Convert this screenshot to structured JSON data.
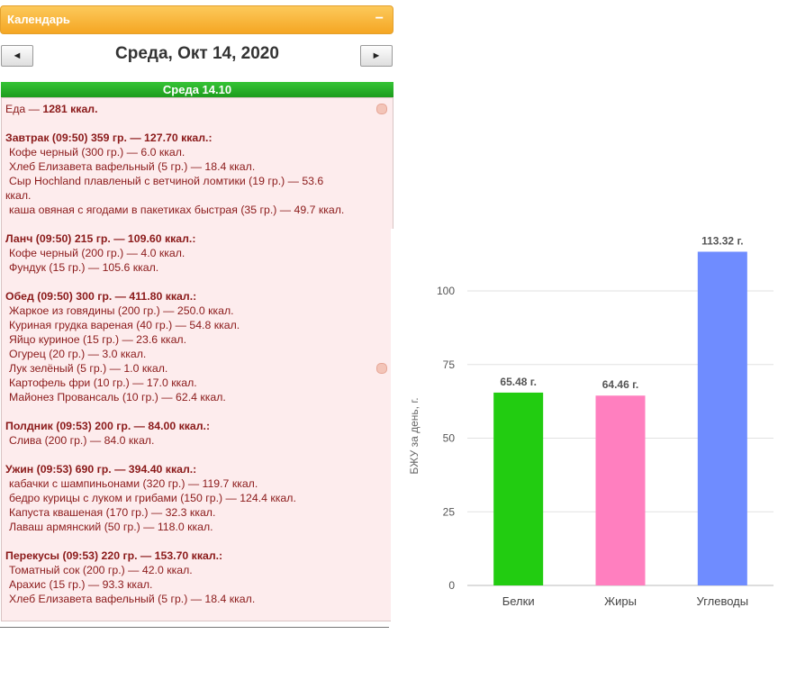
{
  "calendar": {
    "header_title": "Календарь",
    "collapse_symbol": "−",
    "prev_symbol": "◄",
    "next_symbol": "►",
    "date_title": "Среда, Окт 14, 2020",
    "day_bar": "Среда 14.10",
    "lines": [
      {
        "text": "Еда — 1281 ккал.",
        "type": "total"
      },
      {
        "text": "",
        "type": "blank"
      },
      {
        "text": "Завтрак (09:50) 359 гр. — 127.70 ккал.:",
        "type": "meal"
      },
      {
        "text": "Кофе черный (300 гр.) — 6.0 ккал.",
        "type": "item"
      },
      {
        "text": "Хлеб Елизавета вафельный (5 гр.) — 18.4 ккал.",
        "type": "item"
      },
      {
        "text": "Сыр Hochland плавленый с ветчиной ломтики (19 гр.) — 53.6",
        "type": "item"
      },
      {
        "text": "ккал.",
        "type": "wrap"
      },
      {
        "text": "каша овяная с ягодами в пакетиках быстрая (35 гр.) — 49.7 ккал.",
        "type": "item"
      },
      {
        "text": "",
        "type": "blank"
      },
      {
        "text": "Ланч (09:50) 215 гр. — 109.60 ккал.:",
        "type": "meal"
      },
      {
        "text": "Кофе черный (200 гр.) — 4.0 ккал.",
        "type": "item"
      },
      {
        "text": "Фундук (15 гр.) — 105.6 ккал.",
        "type": "item"
      },
      {
        "text": "",
        "type": "blank"
      },
      {
        "text": "Обед (09:50) 300 гр. — 411.80 ккал.:",
        "type": "meal"
      },
      {
        "text": "Жаркое из говядины (200 гр.) — 250.0 ккал.",
        "type": "item"
      },
      {
        "text": "Куриная грудка вареная (40 гр.) — 54.8 ккал.",
        "type": "item"
      },
      {
        "text": "Яйцо куриное (15 гр.) — 23.6 ккал.",
        "type": "item"
      },
      {
        "text": "Огурец (20 гр.) — 3.0 ккал.",
        "type": "item"
      },
      {
        "text": "Лук зелёный (5 гр.) — 1.0 ккал.",
        "type": "item"
      },
      {
        "text": "Картофель фри (10 гр.) — 17.0 ккал.",
        "type": "item"
      },
      {
        "text": "Майонез Провансаль (10 гр.) — 62.4 ккал.",
        "type": "item"
      },
      {
        "text": "",
        "type": "blank"
      },
      {
        "text": "Полдник (09:53) 200 гр. — 84.00 ккал.:",
        "type": "meal"
      },
      {
        "text": "Слива (200 гр.) — 84.0 ккал.",
        "type": "item"
      },
      {
        "text": "",
        "type": "blank"
      },
      {
        "text": "Ужин (09:53) 690 гр. — 394.40 ккал.:",
        "type": "meal"
      },
      {
        "text": "кабачки с шампиньонами (320 гр.) — 119.7 ккал.",
        "type": "item"
      },
      {
        "text": "бедро курицы с луком и грибами (150 гр.) — 124.4 ккал.",
        "type": "item"
      },
      {
        "text": "Капуста квашеная (170 гр.) — 32.3 ккал.",
        "type": "item"
      },
      {
        "text": "Лаваш армянский (50 гр.) — 118.0 ккал.",
        "type": "item"
      },
      {
        "text": "",
        "type": "blank"
      },
      {
        "text": "Перекусы (09:53) 220 гр. — 153.70 ккал.:",
        "type": "meal"
      },
      {
        "text": "Томатный сок (200 гр.) — 42.0 ккал.",
        "type": "item"
      },
      {
        "text": "Арахис (15 гр.) — 93.3 ккал.",
        "type": "item"
      },
      {
        "text": "Хлеб Елизавета вафельный (5 гр.) — 18.4 ккал.",
        "type": "item"
      }
    ]
  },
  "chart_data": {
    "type": "bar",
    "categories": [
      "Белки",
      "Жиры",
      "Углеводы"
    ],
    "values": [
      65.48,
      64.46,
      113.32
    ],
    "data_labels": [
      "65.48 г.",
      "64.46 г.",
      "113.32 г."
    ],
    "colors": [
      "#22cc11",
      "#ff7fbf",
      "#6f8cff"
    ],
    "ylabel": "БЖУ за день, г.",
    "yticks": [
      0,
      25,
      50,
      75,
      100
    ],
    "ylim": [
      0,
      115
    ],
    "grid": true
  }
}
